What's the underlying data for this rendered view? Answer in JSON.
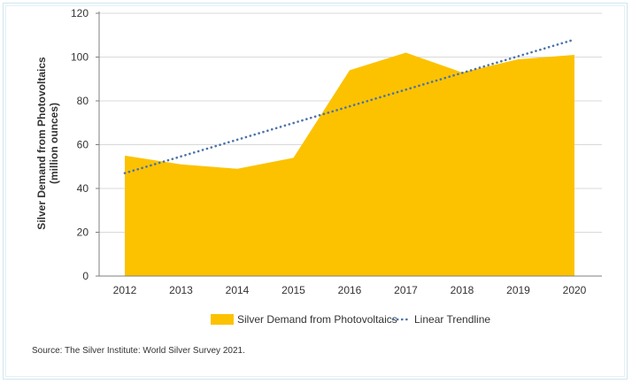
{
  "chart_data": {
    "type": "area",
    "categories": [
      "2012",
      "2013",
      "2014",
      "2015",
      "2016",
      "2017",
      "2018",
      "2019",
      "2020"
    ],
    "series": [
      {
        "name": "Silver Demand from Photovoltaics",
        "values": [
          55,
          51,
          49,
          54,
          94,
          102,
          93,
          99,
          101
        ],
        "color": "#fcc200"
      }
    ],
    "trendline": {
      "name": "Linear Trendline",
      "start": 47,
      "end": 108,
      "color": "#4c73a8"
    },
    "ylabel_line1": "Silver Demand from Photovoltaics",
    "ylabel_line2": "(million ounces)",
    "xlabel": "",
    "ylim": [
      0,
      120
    ],
    "yticks": [
      0,
      20,
      40,
      60,
      80,
      100,
      120
    ],
    "grid": true,
    "legend_position": "bottom-center"
  },
  "legend": {
    "area_label": "Silver Demand from Photovoltaics",
    "trend_label": "Linear Trendline"
  },
  "source": "Source: The Silver Institute: World Silver Survey 2021.",
  "colors": {
    "area": "#fcc200",
    "trend": "#4c73a8",
    "grid": "#d9d9d9",
    "axis": "#7f7f7f"
  }
}
